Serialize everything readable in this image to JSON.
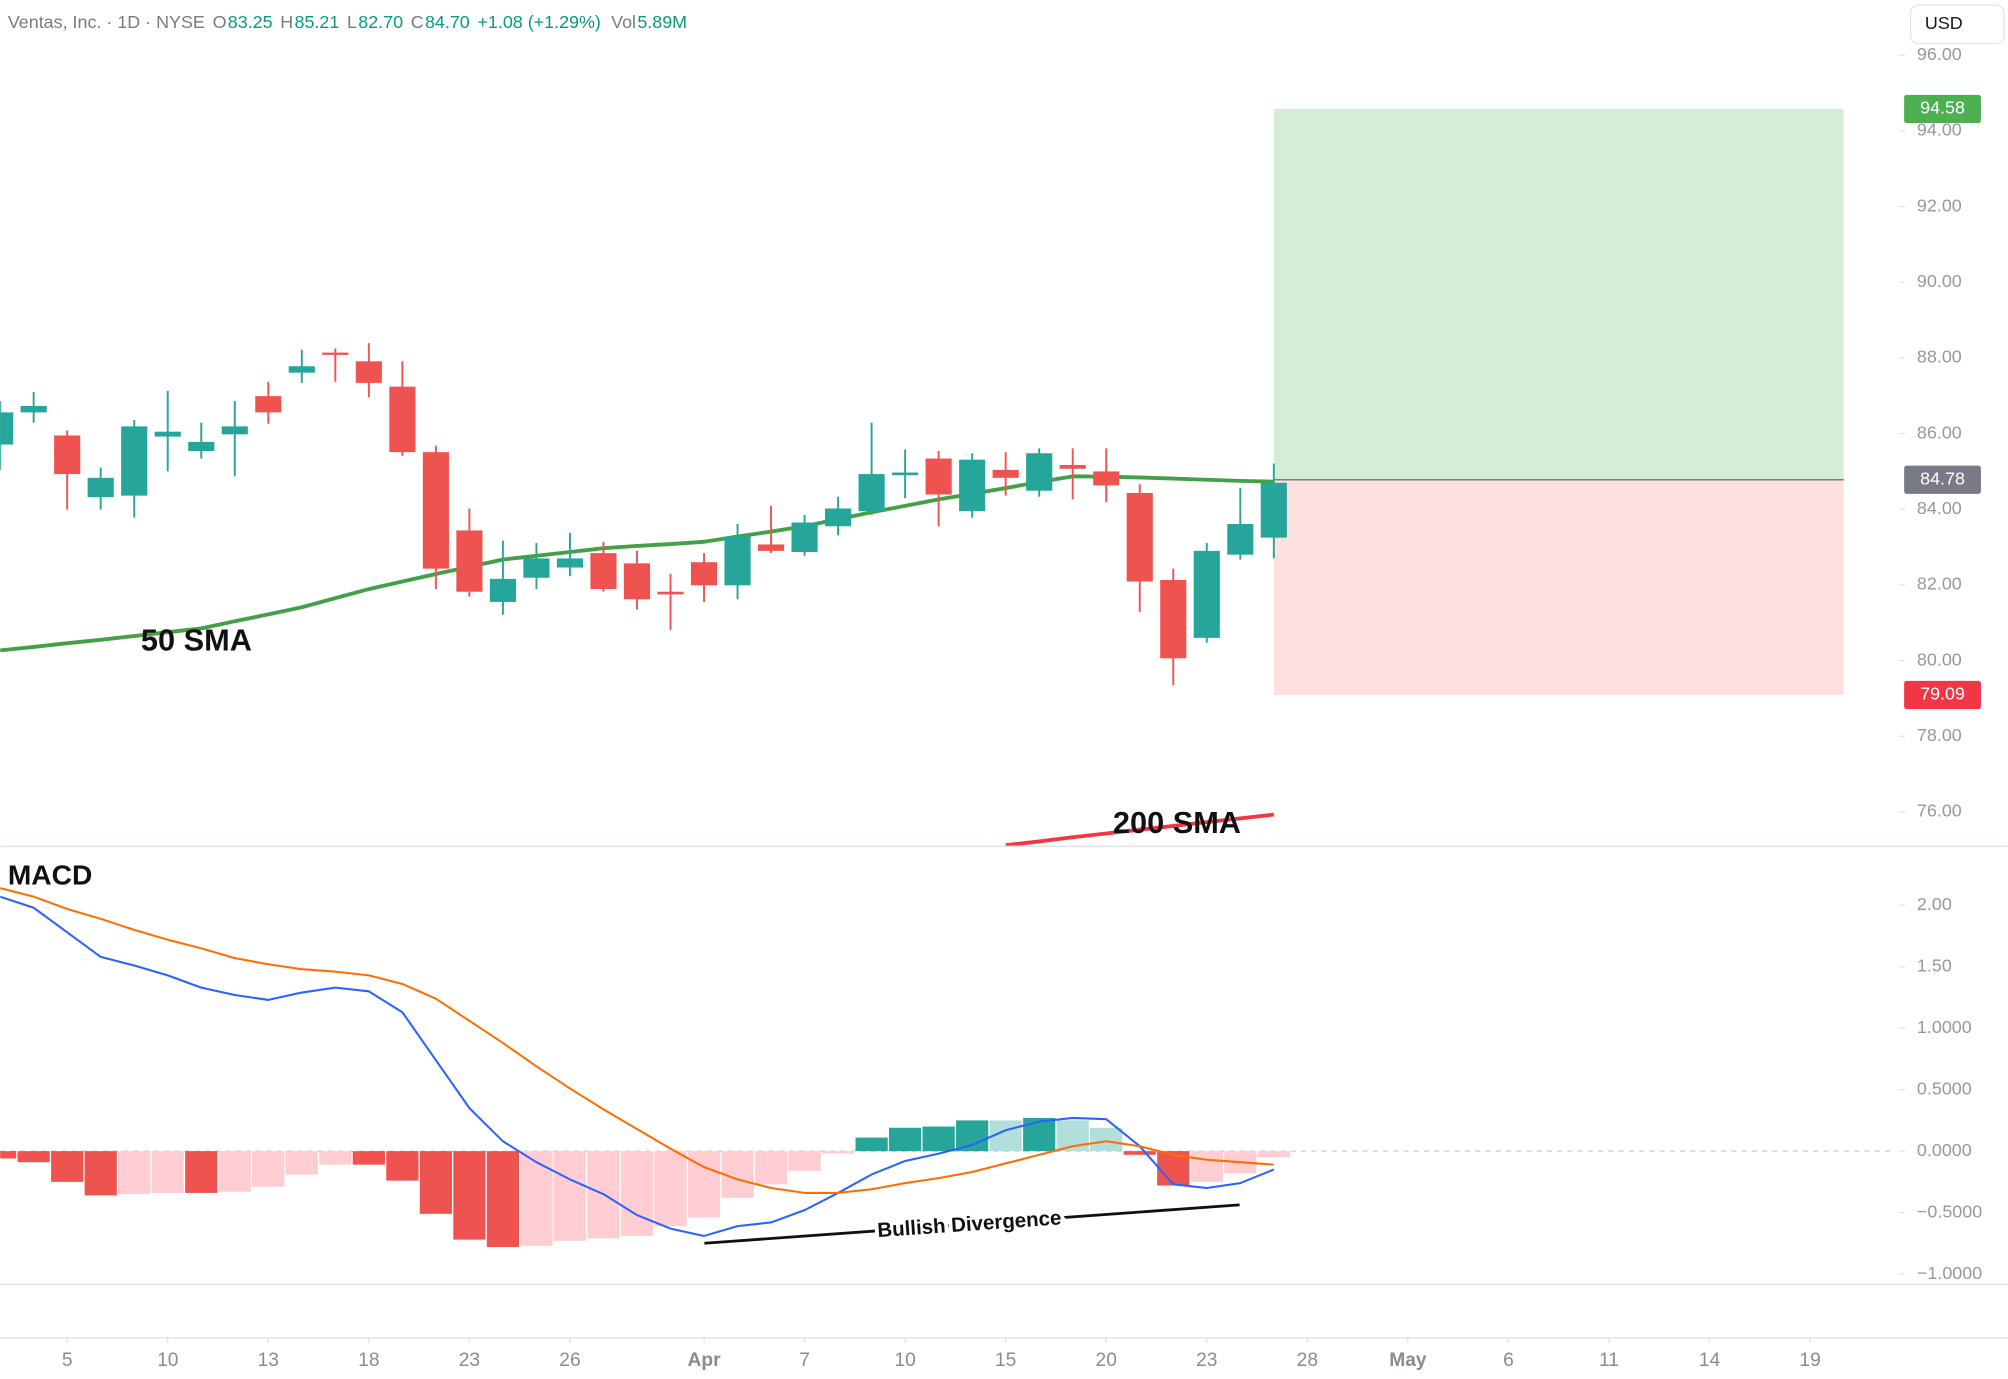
{
  "chart_data": [
    {
      "type": "candlestick",
      "title": "Ventas, Inc. · 1D · NYSE",
      "header": [
        {
          "label": "O",
          "value": "83.25"
        },
        {
          "label": "H",
          "value": "85.21"
        },
        {
          "label": "L",
          "value": "82.70"
        },
        {
          "label": "C",
          "value": "84.70"
        }
      ],
      "change": "+1.08 (+1.29%)",
      "volume_label": "Vol",
      "volume": "5.89M",
      "currency": "USD",
      "open": [
        85.71,
        86.56,
        85.95,
        84.32,
        84.36,
        85.92,
        85.54,
        85.98,
        86.99,
        87.61,
        88.14,
        87.91,
        87.24,
        85.51,
        83.44,
        81.55,
        82.19,
        82.46,
        82.84,
        82.57,
        81.82,
        82.6,
        81.99,
        83.07,
        82.87,
        83.55,
        83.95,
        84.9,
        85.34,
        83.95,
        85.04,
        84.49,
        85.17,
        85.0,
        84.43,
        82.13,
        80.6,
        82.8,
        83.25
      ],
      "high": [
        86.86,
        87.1,
        86.08,
        85.1,
        86.36,
        87.13,
        86.29,
        86.86,
        87.37,
        88.22,
        88.25,
        88.39,
        87.91,
        85.68,
        84.02,
        83.17,
        83.11,
        83.38,
        83.14,
        82.9,
        82.29,
        82.84,
        83.61,
        84.09,
        83.85,
        84.33,
        86.29,
        85.58,
        85.54,
        85.48,
        85.51,
        85.61,
        85.61,
        85.61,
        84.66,
        82.43,
        83.11,
        84.56,
        85.21
      ],
      "low": [
        85.04,
        86.29,
        83.99,
        83.99,
        83.78,
        85.0,
        85.34,
        84.87,
        86.26,
        87.34,
        87.37,
        86.96,
        85.41,
        81.89,
        81.69,
        81.21,
        81.89,
        82.23,
        81.82,
        81.35,
        80.81,
        81.55,
        81.62,
        82.84,
        82.77,
        83.31,
        83.85,
        84.29,
        83.55,
        83.78,
        84.36,
        84.33,
        84.26,
        84.19,
        81.28,
        79.35,
        80.47,
        82.67,
        82.7
      ],
      "close": [
        86.56,
        86.73,
        84.93,
        84.83,
        86.19,
        86.05,
        85.78,
        86.19,
        86.56,
        87.78,
        88.08,
        87.34,
        85.51,
        82.43,
        81.82,
        82.16,
        82.7,
        82.7,
        81.89,
        81.62,
        81.75,
        81.99,
        83.28,
        82.9,
        83.65,
        84.02,
        84.93,
        84.97,
        84.39,
        85.31,
        84.83,
        85.48,
        85.07,
        84.63,
        82.09,
        80.06,
        82.9,
        83.61,
        84.7
      ],
      "up_color": "#26a69a",
      "down_color": "#ef5350",
      "series": [
        {
          "name": "50 SMA",
          "color": "#43a047",
          "values": [
            80.27,
            80.36,
            80.46,
            80.55,
            80.65,
            80.75,
            80.85,
            81.04,
            81.22,
            81.41,
            81.65,
            81.89,
            82.09,
            82.29,
            82.48,
            82.67,
            82.77,
            82.87,
            82.97,
            83.03,
            83.08,
            83.14,
            83.28,
            83.41,
            83.55,
            83.74,
            83.92,
            84.09,
            84.26,
            84.41,
            84.56,
            84.72,
            84.87,
            84.86,
            84.84,
            84.81,
            84.78,
            84.75,
            84.73
          ]
        },
        {
          "name": "200 SMA",
          "color": "#f23645",
          "values": [
            null,
            null,
            null,
            null,
            null,
            null,
            null,
            null,
            null,
            null,
            null,
            null,
            null,
            null,
            null,
            null,
            null,
            null,
            null,
            null,
            null,
            null,
            null,
            null,
            null,
            null,
            null,
            null,
            null,
            null,
            75.12,
            75.22,
            75.33,
            75.43,
            75.53,
            75.63,
            75.73,
            75.83,
            75.93
          ]
        }
      ],
      "position": {
        "start": 38,
        "end": 55,
        "entry": 84.78,
        "target": 94.58,
        "stop": 79.09,
        "profit_color": "#d4edd7",
        "loss_color": "#fde1df",
        "entry_color": "#787b86",
        "target_color": "#4caf50",
        "stop_color": "#f23645"
      },
      "xlim": [
        0,
        56.5
      ],
      "xticks": [
        {
          "value": 2,
          "label": "5"
        },
        {
          "value": 5,
          "label": "10"
        },
        {
          "value": 8,
          "label": "13"
        },
        {
          "value": 11,
          "label": "18"
        },
        {
          "value": 14,
          "label": "23"
        },
        {
          "value": 17,
          "label": "26"
        },
        {
          "value": 21,
          "label": "Apr"
        },
        {
          "value": 24,
          "label": "7"
        },
        {
          "value": 27,
          "label": "10"
        },
        {
          "value": 30,
          "label": "15"
        },
        {
          "value": 33,
          "label": "20"
        },
        {
          "value": 36,
          "label": "23"
        },
        {
          "value": 39,
          "label": "28"
        },
        {
          "value": 42,
          "label": "May"
        },
        {
          "value": 45,
          "label": "6"
        },
        {
          "value": 48,
          "label": "11"
        },
        {
          "value": 51,
          "label": "14"
        },
        {
          "value": 54,
          "label": "19"
        }
      ],
      "ylim": [
        75.09,
        97.46
      ],
      "yticks": [
        {
          "value": 76,
          "label": "76.00"
        },
        {
          "value": 78,
          "label": "78.00"
        },
        {
          "value": 80,
          "label": "80.00"
        },
        {
          "value": 82,
          "label": "82.00"
        },
        {
          "value": 84,
          "label": "84.00"
        },
        {
          "value": 86,
          "label": "86.00"
        },
        {
          "value": 88,
          "label": "88.00"
        },
        {
          "value": 90,
          "label": "90.00"
        },
        {
          "value": 92,
          "label": "92.00"
        },
        {
          "value": 94,
          "label": "94.00"
        },
        {
          "value": 96,
          "label": "96.00"
        }
      ]
    },
    {
      "type": "macd",
      "title": "MACD",
      "annotation": "Bullish Divergence",
      "series": [
        {
          "color": "#2962ff",
          "values": [
            2.07,
            1.98,
            1.78,
            1.58,
            1.51,
            1.43,
            1.33,
            1.27,
            1.23,
            1.29,
            1.33,
            1.3,
            1.13,
            0.74,
            0.35,
            0.08,
            -0.09,
            -0.23,
            -0.35,
            -0.52,
            -0.63,
            -0.69,
            -0.61,
            -0.58,
            -0.48,
            -0.34,
            -0.19,
            -0.08,
            -0.02,
            0.05,
            0.17,
            0.24,
            0.27,
            0.26,
            0.04,
            -0.27,
            -0.3,
            -0.26,
            -0.15
          ]
        },
        {
          "color": "#ff6d00",
          "values": [
            2.14,
            2.07,
            1.97,
            1.89,
            1.8,
            1.72,
            1.65,
            1.57,
            1.52,
            1.48,
            1.46,
            1.43,
            1.36,
            1.24,
            1.06,
            0.88,
            0.69,
            0.51,
            0.34,
            0.18,
            0.02,
            -0.13,
            -0.23,
            -0.3,
            -0.34,
            -0.34,
            -0.31,
            -0.26,
            -0.22,
            -0.17,
            -0.1,
            -0.03,
            0.04,
            0.08,
            0.04,
            -0.03,
            -0.07,
            -0.09,
            -0.11
          ]
        }
      ],
      "histogram": {
        "values": [
          -0.06,
          -0.09,
          -0.25,
          -0.36,
          -0.35,
          -0.34,
          -0.34,
          -0.33,
          -0.29,
          -0.19,
          -0.11,
          -0.11,
          -0.24,
          -0.51,
          -0.72,
          -0.78,
          -0.77,
          -0.73,
          -0.71,
          -0.69,
          -0.61,
          -0.54,
          -0.38,
          -0.27,
          -0.16,
          -0.02,
          0.11,
          0.19,
          0.2,
          0.25,
          0.25,
          0.27,
          0.25,
          0.19,
          -0.03,
          -0.28,
          -0.25,
          -0.18,
          -0.05
        ],
        "colors": [
          "#ef5350",
          "#ef5350",
          "#ef5350",
          "#ef5350",
          "#ffcdd2",
          "#ffcdd2",
          "#ef5350",
          "#ffcdd2",
          "#ffcdd2",
          "#ffcdd2",
          "#ffcdd2",
          "#ef5350",
          "#ef5350",
          "#ef5350",
          "#ef5350",
          "#ef5350",
          "#ffcdd2",
          "#ffcdd2",
          "#ffcdd2",
          "#ffcdd2",
          "#ffcdd2",
          "#ffcdd2",
          "#ffcdd2",
          "#ffcdd2",
          "#ffcdd2",
          "#ffcdd2",
          "#26a69a",
          "#26a69a",
          "#26a69a",
          "#26a69a",
          "#b2dfdb",
          "#26a69a",
          "#b2dfdb",
          "#b2dfdb",
          "#ef5350",
          "#ef5350",
          "#ffcdd2",
          "#ffcdd2",
          "#ffcdd2"
        ]
      },
      "ylim": [
        -1.083,
        2.469
      ],
      "yticks": [
        {
          "value": -1,
          "label": "−1.0000"
        },
        {
          "value": -0.5,
          "label": "−0.5000"
        },
        {
          "value": 0,
          "label": "0.0000"
        },
        {
          "value": 0.5,
          "label": "0.5000"
        },
        {
          "value": 1,
          "label": "1.0000"
        },
        {
          "value": 1.5,
          "label": "1.50"
        },
        {
          "value": 2,
          "label": "2.00"
        }
      ]
    }
  ]
}
